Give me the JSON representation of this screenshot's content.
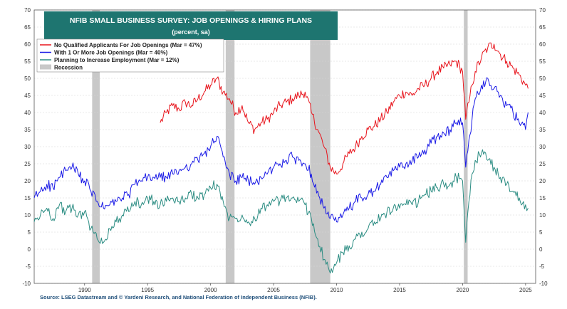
{
  "chart_data": {
    "type": "line",
    "title": "NFIB SMALL BUSINESS SURVEY: JOB OPENINGS & HIRING PLANS",
    "subtitle": "(percent, sa)",
    "source": "Source: LSEG Datastream and © Yardeni Research, and National Federation of Independent Business (NFIB).",
    "ylim": [
      -10,
      70
    ],
    "xlim": [
      1986,
      2025.8
    ],
    "y_ticks": [
      -10,
      -5,
      0,
      5,
      10,
      15,
      20,
      25,
      30,
      35,
      40,
      45,
      50,
      55,
      60,
      65,
      70
    ],
    "x_ticks": [
      1990,
      1995,
      2000,
      2005,
      2010,
      2015,
      2020,
      2025
    ],
    "recessions": [
      [
        1990.6,
        1991.2
      ],
      [
        2001.2,
        2001.9
      ],
      [
        2007.9,
        2009.5
      ],
      [
        2020.1,
        2020.4
      ]
    ],
    "recession_color": "#c8c8c8",
    "legend": [
      {
        "label": "No Qualified Applicants For Job Openings  (Mar = 47%)",
        "color": "#e8141c",
        "type": "line"
      },
      {
        "label": "With 1 Or More Job Openings  (Mar = 40%)",
        "color": "#1a1ae6",
        "type": "line"
      },
      {
        "label": "Planning to Increase Employment  (Mar = 12%)",
        "color": "#2a8c82",
        "type": "line"
      },
      {
        "label": "Recession",
        "color": "#c8c8c8",
        "type": "box"
      }
    ],
    "series": [
      {
        "name": "No Qualified Applicants For Job Openings",
        "color": "#e8141c",
        "x": [
          1996.0,
          1996.5,
          1997.0,
          1997.5,
          1998.0,
          1998.5,
          1999.0,
          1999.5,
          2000.0,
          2000.5,
          2001.0,
          2001.5,
          2002.0,
          2002.5,
          2003.0,
          2003.5,
          2004.0,
          2004.5,
          2005.0,
          2005.5,
          2006.0,
          2006.5,
          2007.0,
          2007.5,
          2008.0,
          2008.5,
          2009.0,
          2009.5,
          2010.0,
          2010.5,
          2011.0,
          2011.5,
          2012.0,
          2012.5,
          2013.0,
          2013.5,
          2014.0,
          2014.5,
          2015.0,
          2015.5,
          2016.0,
          2016.5,
          2017.0,
          2017.5,
          2018.0,
          2018.5,
          2019.0,
          2019.5,
          2020.0,
          2020.25,
          2020.5,
          2020.75,
          2021.0,
          2021.5,
          2022.0,
          2022.5,
          2023.0,
          2023.5,
          2024.0,
          2024.5,
          2025.0,
          2025.2
        ],
        "values": [
          37,
          40,
          42,
          41,
          43,
          42,
          44,
          46,
          48,
          50,
          46,
          44,
          40,
          42,
          37,
          35,
          37,
          38,
          40,
          42,
          43,
          44,
          45,
          46,
          40,
          35,
          30,
          24,
          22,
          25,
          28,
          30,
          33,
          35,
          36,
          38,
          40,
          43,
          45,
          46,
          45,
          47,
          48,
          50,
          52,
          53,
          54,
          55,
          52,
          38,
          43,
          48,
          52,
          56,
          59,
          60,
          57,
          55,
          53,
          51,
          48,
          47
        ]
      },
      {
        "name": "With 1 Or More Job Openings",
        "color": "#1a1ae6",
        "x": [
          1986.0,
          1986.5,
          1987.0,
          1987.5,
          1988.0,
          1988.5,
          1989.0,
          1989.5,
          1990.0,
          1990.5,
          1991.0,
          1991.5,
          1992.0,
          1992.5,
          1993.0,
          1993.5,
          1994.0,
          1994.5,
          1995.0,
          1995.5,
          1996.0,
          1996.5,
          1997.0,
          1997.5,
          1998.0,
          1998.5,
          1999.0,
          1999.5,
          2000.0,
          2000.5,
          2001.0,
          2001.5,
          2002.0,
          2002.5,
          2003.0,
          2003.5,
          2004.0,
          2004.5,
          2005.0,
          2005.5,
          2006.0,
          2006.5,
          2007.0,
          2007.5,
          2008.0,
          2008.5,
          2009.0,
          2009.5,
          2010.0,
          2010.5,
          2011.0,
          2011.5,
          2012.0,
          2012.5,
          2013.0,
          2013.5,
          2014.0,
          2014.5,
          2015.0,
          2015.5,
          2016.0,
          2016.5,
          2017.0,
          2017.5,
          2018.0,
          2018.5,
          2019.0,
          2019.5,
          2020.0,
          2020.25,
          2020.5,
          2020.75,
          2021.0,
          2021.5,
          2022.0,
          2022.5,
          2023.0,
          2023.5,
          2024.0,
          2024.5,
          2025.0,
          2025.2
        ],
        "values": [
          15,
          17,
          19,
          18,
          21,
          23,
          24,
          22,
          20,
          17,
          14,
          12,
          13,
          14,
          15,
          16,
          19,
          20,
          21,
          21,
          21,
          21,
          22,
          23,
          24,
          25,
          26,
          28,
          30,
          33,
          27,
          22,
          20,
          21,
          20,
          19,
          21,
          22,
          24,
          25,
          26,
          27,
          26,
          25,
          22,
          17,
          12,
          9,
          8,
          10,
          12,
          14,
          15,
          16,
          17,
          19,
          21,
          23,
          24,
          25,
          26,
          27,
          29,
          31,
          33,
          34,
          35,
          37,
          37,
          24,
          32,
          38,
          44,
          48,
          50,
          47,
          45,
          42,
          40,
          37,
          35,
          40
        ]
      },
      {
        "name": "Planning to Increase Employment",
        "color": "#2a8c82",
        "x": [
          1986.0,
          1986.5,
          1987.0,
          1987.5,
          1988.0,
          1988.5,
          1989.0,
          1989.5,
          1990.0,
          1990.5,
          1991.0,
          1991.5,
          1992.0,
          1992.5,
          1993.0,
          1993.5,
          1994.0,
          1994.5,
          1995.0,
          1995.5,
          1996.0,
          1996.5,
          1997.0,
          1997.5,
          1998.0,
          1998.5,
          1999.0,
          1999.5,
          2000.0,
          2000.5,
          2001.0,
          2001.5,
          2002.0,
          2002.5,
          2003.0,
          2003.5,
          2004.0,
          2004.5,
          2005.0,
          2005.5,
          2006.0,
          2006.5,
          2007.0,
          2007.5,
          2008.0,
          2008.5,
          2009.0,
          2009.5,
          2010.0,
          2010.5,
          2011.0,
          2011.5,
          2012.0,
          2012.5,
          2013.0,
          2013.5,
          2014.0,
          2014.5,
          2015.0,
          2015.5,
          2016.0,
          2016.5,
          2017.0,
          2017.5,
          2018.0,
          2018.5,
          2019.0,
          2019.5,
          2020.0,
          2020.25,
          2020.5,
          2020.75,
          2021.0,
          2021.5,
          2022.0,
          2022.5,
          2023.0,
          2023.5,
          2024.0,
          2024.5,
          2025.0,
          2025.2
        ],
        "values": [
          8,
          10,
          12,
          9,
          13,
          11,
          12,
          10,
          11,
          6,
          3,
          2,
          6,
          8,
          10,
          11,
          14,
          13,
          15,
          14,
          13,
          14,
          15,
          14,
          15,
          16,
          15,
          16,
          18,
          19,
          14,
          9,
          9,
          10,
          8,
          9,
          12,
          13,
          14,
          14,
          15,
          15,
          14,
          13,
          9,
          3,
          -3,
          -7,
          -4,
          -1,
          1,
          3,
          5,
          6,
          8,
          9,
          11,
          12,
          12,
          13,
          13,
          14,
          16,
          17,
          18,
          19,
          19,
          21,
          20,
          2,
          14,
          22,
          26,
          28,
          26,
          24,
          21,
          19,
          17,
          15,
          13,
          12
        ]
      }
    ]
  }
}
